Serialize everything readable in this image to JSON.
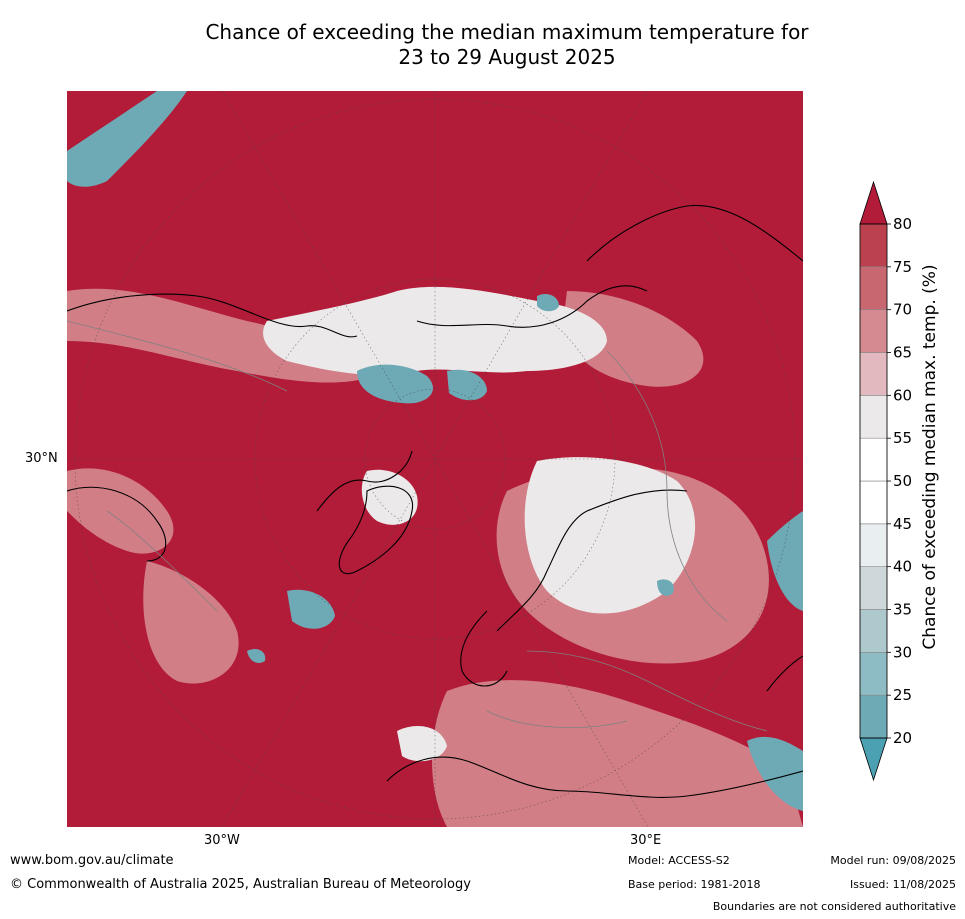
{
  "title": {
    "line1": "Chance of exceeding the median maximum temperature for",
    "line2": "23 to 29 August 2025"
  },
  "map": {
    "lat_label": "30°N",
    "lon_labels": [
      "30°W",
      "30°E"
    ],
    "base_color": "#b21c38"
  },
  "colorbar": {
    "title": "Chance of exceeding median max. temp. (%)",
    "levels": [
      20,
      25,
      30,
      35,
      40,
      45,
      50,
      55,
      60,
      65,
      70,
      75,
      80
    ],
    "colors": [
      "#4ba0b1",
      "#6daab5",
      "#8dbcc4",
      "#adc9cd",
      "#ced7d9",
      "#e9eef0",
      "#ffffff",
      "#ffffff",
      "#ebe9e9",
      "#e1b9be",
      "#d58990",
      "#c96771",
      "#bb414f",
      "#b21c38"
    ]
  },
  "footer": {
    "website": "www.bom.gov.au/climate",
    "copyright": "© Commonwealth of Australia 2025, Australian Bureau of Meteorology",
    "model": "Model: ACCESS-S2",
    "base_period": "Base period: 1981-2018",
    "model_run": "Model run: 09/08/2025",
    "issued": "Issued: 11/08/2025",
    "disclaimer": "Boundaries are not considered authoritative"
  }
}
